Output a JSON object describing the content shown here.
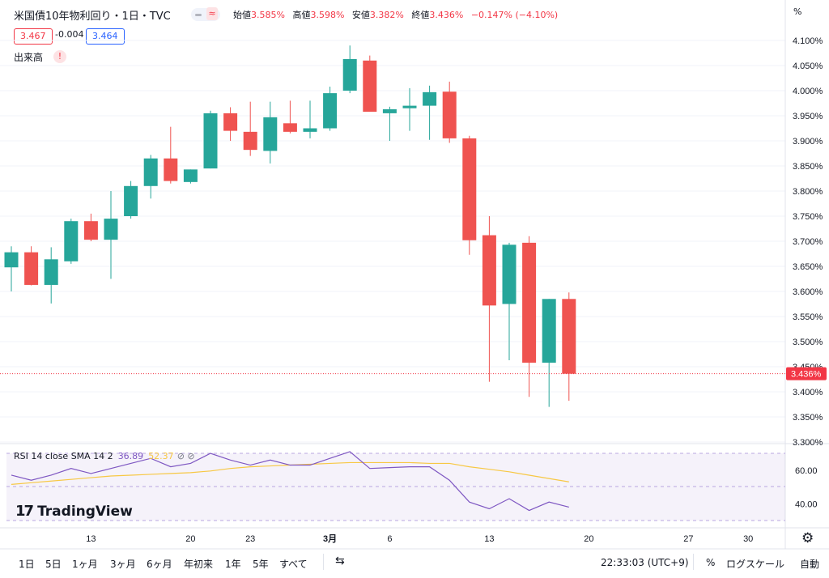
{
  "header": {
    "title": "米国債10年物利回り・1日・TVC",
    "ohlc": [
      {
        "k": "始値",
        "v": "3.585%"
      },
      {
        "k": "高値",
        "v": "3.598%"
      },
      {
        "k": "安値",
        "v": "3.382%"
      },
      {
        "k": "終値",
        "v": "3.436%"
      }
    ],
    "change": "−0.147% (−4.10%)",
    "bid": "3.467",
    "spread": "-0.004",
    "ask": "3.464",
    "volume_label": "出来高",
    "warning_icon": "!",
    "wave_icon": "≈",
    "percent_symbol": "%"
  },
  "price_axis": {
    "ticks": [
      "4.100%",
      "4.050%",
      "4.000%",
      "3.950%",
      "3.900%",
      "3.850%",
      "3.800%",
      "3.750%",
      "3.700%",
      "3.650%",
      "3.600%",
      "3.550%",
      "3.500%",
      "3.450%",
      "3.400%",
      "3.350%",
      "3.300%"
    ],
    "last_price_label": "3.436%"
  },
  "time_axis": {
    "labels": [
      {
        "text": "13",
        "bar": 4
      },
      {
        "text": "20",
        "bar": 9
      },
      {
        "text": "23",
        "bar": 12
      },
      {
        "text": "3月",
        "bar": 16
      },
      {
        "text": "6",
        "bar": 19
      },
      {
        "text": "13",
        "bar": 24
      },
      {
        "text": "20",
        "bar": 29
      },
      {
        "text": "27",
        "bar": 34
      },
      {
        "text": "30",
        "bar": 37
      }
    ]
  },
  "rsi": {
    "label": "RSI 14 close SMA 14 2",
    "rsi_value": "36.89",
    "sma_value": "52.37",
    "flags": "⊘ ⊘",
    "ticks": [
      "60.00",
      "40.00"
    ],
    "rsi_values": [
      57,
      54,
      57,
      61,
      58,
      61,
      64,
      67,
      62,
      64,
      70,
      66,
      63,
      66,
      63,
      63,
      67,
      71,
      61,
      61.5,
      62,
      62,
      54,
      41,
      37,
      43,
      36,
      41,
      38
    ],
    "sma_values": [
      51.5,
      52.5,
      53.5,
      54.5,
      55.5,
      56.5,
      57,
      57.5,
      58,
      58.5,
      59.5,
      61,
      62,
      62.5,
      63,
      63.5,
      64,
      64.5,
      64.5,
      64.5,
      64.5,
      64,
      64,
      62,
      60.5,
      59,
      57,
      55,
      53
    ]
  },
  "logo_text": "TradingView",
  "logo_mark": "17",
  "bottom_bar": {
    "ranges": [
      "1日",
      "5日",
      "1ヶ月",
      "3ヶ月",
      "6ヶ月",
      "年初来",
      "1年",
      "5年",
      "すべて"
    ],
    "time": "22:33:03 (UTC+9)",
    "percent": "%",
    "log_scale": "ログスケール",
    "auto": "自動"
  },
  "colors": {
    "up": "#26a69a",
    "down": "#ef5350",
    "rsi": "#7e57c2",
    "sma": "#f7c844",
    "price_line": "#f23645"
  },
  "chart_data": {
    "type": "candlestick",
    "title": "米国債10年物利回り・1日・TVC",
    "ylabel": "%",
    "ylim": [
      3.3,
      4.1
    ],
    "candles": [
      {
        "o": 3.648,
        "h": 3.69,
        "l": 3.6,
        "c": 3.678
      },
      {
        "o": 3.678,
        "h": 3.69,
        "l": 3.612,
        "c": 3.613
      },
      {
        "o": 3.613,
        "h": 3.688,
        "l": 3.576,
        "c": 3.664
      },
      {
        "o": 3.66,
        "h": 3.745,
        "l": 3.655,
        "c": 3.74
      },
      {
        "o": 3.74,
        "h": 3.755,
        "l": 3.7,
        "c": 3.703
      },
      {
        "o": 3.703,
        "h": 3.8,
        "l": 3.625,
        "c": 3.745
      },
      {
        "o": 3.75,
        "h": 3.82,
        "l": 3.745,
        "c": 3.81
      },
      {
        "o": 3.81,
        "h": 3.872,
        "l": 3.785,
        "c": 3.865
      },
      {
        "o": 3.865,
        "h": 3.928,
        "l": 3.815,
        "c": 3.82
      },
      {
        "o": 3.818,
        "h": 3.843,
        "l": 3.815,
        "c": 3.843
      },
      {
        "o": 3.845,
        "h": 3.96,
        "l": 3.845,
        "c": 3.955
      },
      {
        "o": 3.955,
        "h": 3.967,
        "l": 3.9,
        "c": 3.92
      },
      {
        "o": 3.918,
        "h": 3.978,
        "l": 3.87,
        "c": 3.882
      },
      {
        "o": 3.88,
        "h": 3.978,
        "l": 3.855,
        "c": 3.947
      },
      {
        "o": 3.935,
        "h": 3.98,
        "l": 3.915,
        "c": 3.918
      },
      {
        "o": 3.918,
        "h": 3.98,
        "l": 3.905,
        "c": 3.925
      },
      {
        "o": 3.925,
        "h": 4.008,
        "l": 3.92,
        "c": 3.995
      },
      {
        "o": 4.0,
        "h": 4.09,
        "l": 3.995,
        "c": 4.063
      },
      {
        "o": 4.06,
        "h": 4.07,
        "l": 3.958,
        "c": 3.958
      },
      {
        "o": 3.955,
        "h": 3.968,
        "l": 3.9,
        "c": 3.963
      },
      {
        "o": 3.965,
        "h": 4.005,
        "l": 3.92,
        "c": 3.97
      },
      {
        "o": 3.97,
        "h": 4.01,
        "l": 3.902,
        "c": 3.997
      },
      {
        "o": 3.998,
        "h": 4.018,
        "l": 3.896,
        "c": 3.905
      },
      {
        "o": 3.905,
        "h": 3.91,
        "l": 3.673,
        "c": 3.702
      },
      {
        "o": 3.712,
        "h": 3.75,
        "l": 3.42,
        "c": 3.572
      },
      {
        "o": 3.575,
        "h": 3.697,
        "l": 3.463,
        "c": 3.693
      },
      {
        "o": 3.697,
        "h": 3.71,
        "l": 3.39,
        "c": 3.458
      },
      {
        "o": 3.458,
        "h": 3.585,
        "l": 3.37,
        "c": 3.585
      },
      {
        "o": 3.585,
        "h": 3.598,
        "l": 3.382,
        "c": 3.436
      }
    ],
    "last": 3.436
  }
}
